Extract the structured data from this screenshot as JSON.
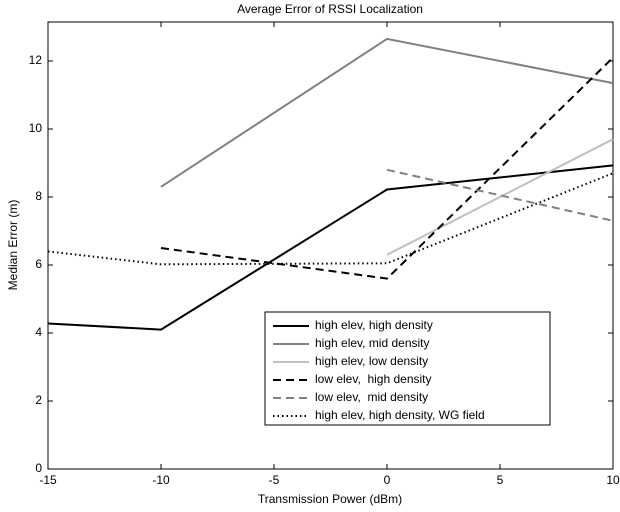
{
  "chart_data": {
    "type": "line",
    "title": "Average Error of RSSI Localization",
    "x_label": "Transmission Power (dBm)",
    "y_label": "Median Error (m)",
    "x": [
      -15,
      -10,
      0,
      10
    ],
    "series": [
      {
        "name": "high elev, high density",
        "color": "#000000",
        "dash": "solid",
        "values": [
          4.28,
          4.1,
          8.22,
          8.93
        ]
      },
      {
        "name": "high elev, mid density",
        "color": "#808080",
        "dash": "solid",
        "values": [
          null,
          8.3,
          12.65,
          11.35
        ]
      },
      {
        "name": "high elev, low density",
        "color": "#c0c0c0",
        "dash": "solid",
        "values": [
          null,
          null,
          6.3,
          9.7
        ]
      },
      {
        "name": "low elev,  high density",
        "color": "#000000",
        "dash": "dashed",
        "values": [
          null,
          6.5,
          5.6,
          12.1
        ]
      },
      {
        "name": "low elev,  mid density",
        "color": "#808080",
        "dash": "dashed",
        "values": [
          null,
          null,
          8.8,
          7.3
        ]
      },
      {
        "name": "high elev, high density, WG field",
        "color": "#000000",
        "dash": "dotted",
        "values": [
          6.4,
          6.02,
          6.05,
          8.7
        ]
      }
    ],
    "xlim": [
      -15,
      10
    ],
    "ylim": [
      0,
      13
    ],
    "xticks": [
      -15,
      -10,
      -5,
      0,
      5,
      10
    ],
    "yticks": [
      0,
      2,
      4,
      6,
      8,
      10,
      12
    ],
    "grid": false
  }
}
